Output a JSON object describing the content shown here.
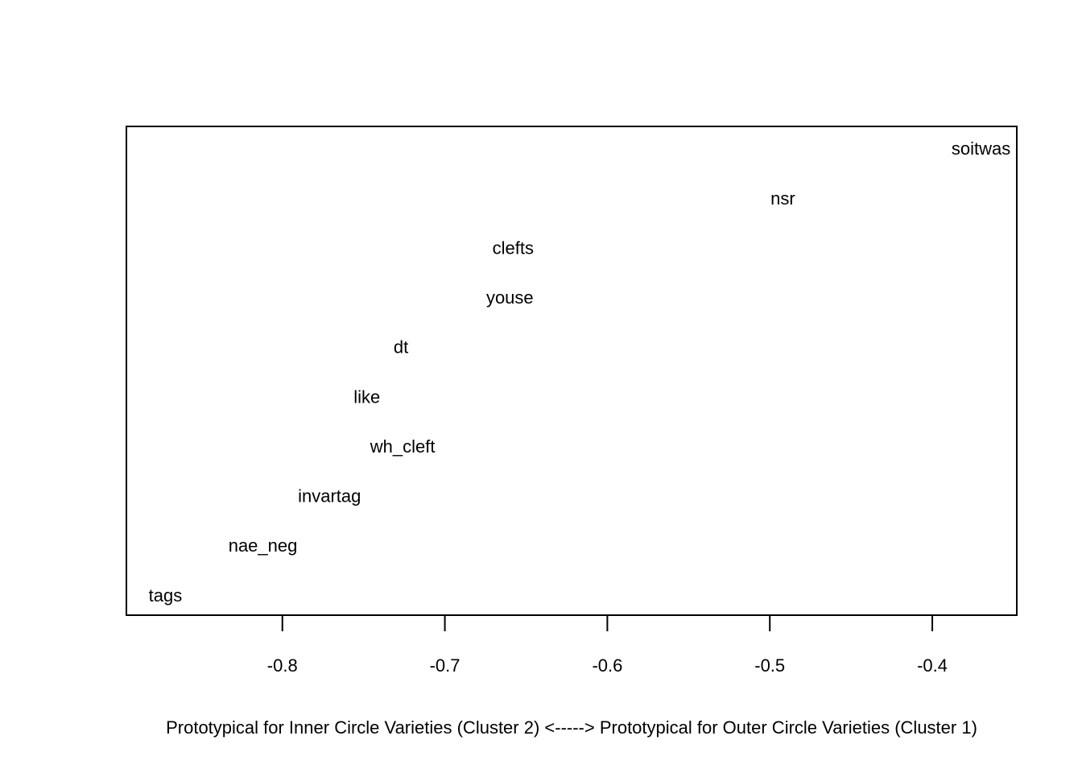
{
  "chart_data": {
    "type": "scatter",
    "title": "",
    "xlabel": "Prototypical for Inner Circle Varieties (Cluster 2) <-----> Prototypical for Outer Circle Varieties (Cluster 1)",
    "ylabel": "",
    "xlim": [
      -0.896,
      -0.348
    ],
    "x_ticks": [
      -0.8,
      -0.7,
      -0.6,
      -0.5,
      -0.4
    ],
    "x_tick_labels": [
      "-0.8",
      "-0.7",
      "-0.6",
      "-0.5",
      "-0.4"
    ],
    "y_axis_shown": false,
    "grid": false,
    "legend": "none",
    "points": [
      {
        "label": "tags",
        "x": -0.872,
        "rank": 1
      },
      {
        "label": "nae_neg",
        "x": -0.812,
        "rank": 2
      },
      {
        "label": "invartag",
        "x": -0.771,
        "rank": 3
      },
      {
        "label": "wh_cleft",
        "x": -0.726,
        "rank": 4
      },
      {
        "label": "like",
        "x": -0.748,
        "rank": 5
      },
      {
        "label": "dt",
        "x": -0.727,
        "rank": 6
      },
      {
        "label": "youse",
        "x": -0.66,
        "rank": 7
      },
      {
        "label": "clefts",
        "x": -0.658,
        "rank": 8
      },
      {
        "label": "nsr",
        "x": -0.492,
        "rank": 9
      },
      {
        "label": "soitwas",
        "x": -0.37,
        "rank": 10
      }
    ]
  }
}
